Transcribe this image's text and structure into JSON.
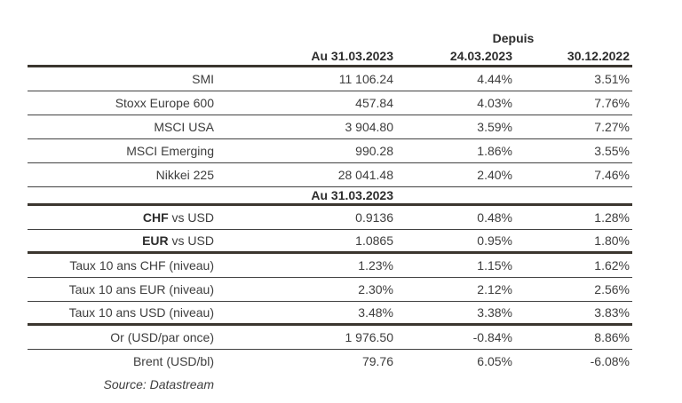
{
  "page": {
    "background": "#ffffff"
  },
  "colors": {
    "text": "#3d3d3d",
    "header_text": "#2c2c2c",
    "rule_thick": "#3b362f",
    "rule_thin": "#414141"
  },
  "table": {
    "header": {
      "depuis_label": "Depuis",
      "columns": [
        "Au 31.03.2023",
        "24.03.2023",
        "30.12.2022"
      ]
    },
    "section_header": "Au 31.03.2023",
    "rows": [
      {
        "label_bold": "",
        "label": "SMI",
        "value": "11 106.24",
        "since_2403": "4.44%",
        "since_3012": "3.51%"
      },
      {
        "label_bold": "",
        "label": "Stoxx Europe 600",
        "value": "457.84",
        "since_2403": "4.03%",
        "since_3012": "7.76%"
      },
      {
        "label_bold": "",
        "label": "MSCI USA",
        "value": "3 904.80",
        "since_2403": "3.59%",
        "since_3012": "7.27%"
      },
      {
        "label_bold": "",
        "label": "MSCI Emerging",
        "value": "990.28",
        "since_2403": "1.86%",
        "since_3012": "3.55%"
      },
      {
        "label_bold": "",
        "label": "Nikkei 225",
        "value": "28 041.48",
        "since_2403": "2.40%",
        "since_3012": "7.46%"
      },
      {
        "label_bold": "CHF",
        "label": " vs USD",
        "value": "0.9136",
        "since_2403": "0.48%",
        "since_3012": "1.28%"
      },
      {
        "label_bold": "EUR",
        "label": " vs USD",
        "value": "1.0865",
        "since_2403": "0.95%",
        "since_3012": "1.80%"
      },
      {
        "label_bold": "",
        "label": "Taux 10 ans CHF (niveau)",
        "value": "1.23%",
        "since_2403": "1.15%",
        "since_3012": "1.62%"
      },
      {
        "label_bold": "",
        "label": "Taux 10 ans EUR (niveau)",
        "value": "2.30%",
        "since_2403": "2.12%",
        "since_3012": "2.56%"
      },
      {
        "label_bold": "",
        "label": "Taux 10 ans USD (niveau)",
        "value": "3.48%",
        "since_2403": "3.38%",
        "since_3012": "3.83%"
      },
      {
        "label_bold": "",
        "label": "Or (USD/par once)",
        "value": "1 976.50",
        "since_2403": "-0.84%",
        "since_3012": "8.86%"
      },
      {
        "label_bold": "",
        "label": "Brent (USD/bl)",
        "value": "79.76",
        "since_2403": "6.05%",
        "since_3012": "-6.08%"
      }
    ],
    "source": "Source: Datastream"
  }
}
